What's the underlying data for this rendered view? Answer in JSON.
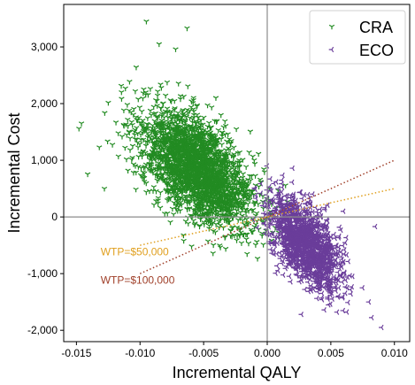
{
  "chart_data": {
    "type": "scatter",
    "xlabel": "Incremental QALY",
    "ylabel": "Incremental Cost",
    "xlim": [
      -0.016,
      0.0112
    ],
    "ylim": [
      -2200,
      3750
    ],
    "xticks": [
      -0.015,
      -0.01,
      -0.005,
      0.0,
      0.005,
      0.01
    ],
    "xtick_labels": [
      "-0.015",
      "-0.010",
      "-0.005",
      "0.000",
      "0.005",
      "0.010"
    ],
    "yticks": [
      -2000,
      -1000,
      0,
      1000,
      2000,
      3000
    ],
    "ytick_labels": [
      "-2,000",
      "-1,000",
      "0",
      "1,000",
      "2,000",
      "3,000"
    ],
    "grid": false,
    "legend_position": "top-right",
    "reference_lines": [
      {
        "type": "vertical",
        "x": 0
      },
      {
        "type": "horizontal",
        "y": 0
      }
    ],
    "series": [
      {
        "name": "CRA",
        "marker": "tri-down",
        "color": "#228b22",
        "cloud": {
          "center": [
            -0.0055,
            850
          ],
          "x_sd": 0.0022,
          "y_sd": 520,
          "correlation": -0.55,
          "count": 2600
        },
        "outliers": [
          [
            -0.0095,
            3450
          ],
          [
            -0.0063,
            3330
          ],
          [
            -0.0148,
            1560
          ],
          [
            -0.0128,
            500
          ],
          [
            -0.0103,
            2640
          ],
          [
            -0.0117,
            1070
          ],
          [
            -0.0085,
            3050
          ],
          [
            -0.0072,
            2960
          ],
          [
            -0.0132,
            1230
          ],
          [
            -0.011,
            1980
          ],
          [
            -0.0004,
            -290
          ],
          [
            -0.0001,
            -240
          ]
        ]
      },
      {
        "name": "ECO",
        "marker": "tri-left",
        "color": "#6a3d9a",
        "cloud": {
          "center": [
            0.003,
            -450
          ],
          "x_sd": 0.0014,
          "y_sd": 400,
          "correlation": -0.6,
          "count": 1500
        },
        "outliers": [
          [
            0.009,
            -1950
          ],
          [
            0.008,
            -1500
          ],
          [
            0.0055,
            -1680
          ],
          [
            0.0045,
            -1640
          ],
          [
            0.0027,
            -1720
          ],
          [
            0.0085,
            -170
          ],
          [
            0.0,
            900
          ],
          [
            0.002,
            860
          ],
          [
            0.006,
            100
          ],
          [
            0.0075,
            -1250
          ]
        ]
      }
    ],
    "wtp_lines": [
      {
        "label": "WTP=$50,000",
        "wtp": 50000,
        "color": "#e0a020",
        "x_range": [
          -0.01,
          0.01
        ]
      },
      {
        "label": "WTP=$100,000",
        "wtp": 100000,
        "color": "#a0402a",
        "x_range": [
          -0.01,
          0.01
        ]
      }
    ],
    "annotations": [
      {
        "text": "WTP=$50,000",
        "color": "#e0a020",
        "x": -0.0131,
        "y": -680
      },
      {
        "text": "WTP=$100,000",
        "color": "#a0402a",
        "x": -0.0131,
        "y": -1180
      }
    ]
  }
}
